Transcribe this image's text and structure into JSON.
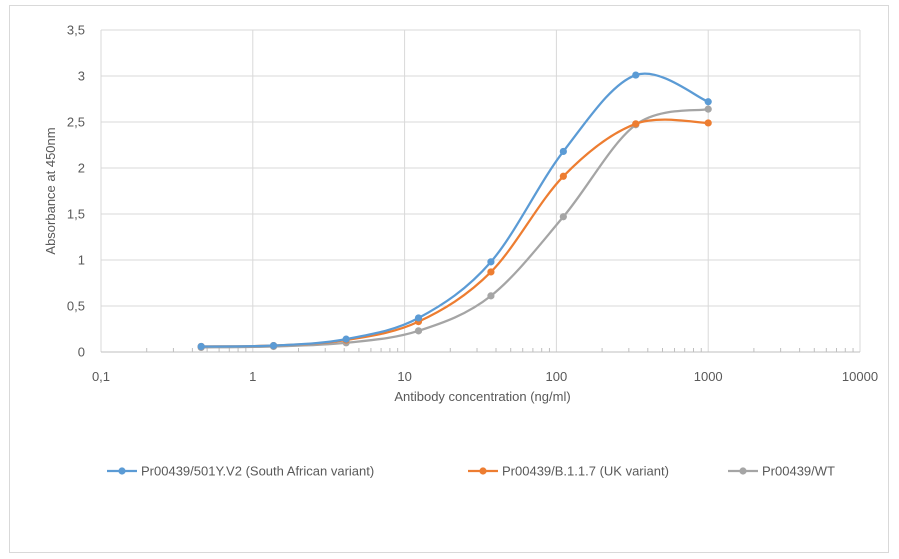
{
  "chart_data": {
    "type": "scatter",
    "title": "",
    "xlabel": "Antibody concentration (ng/ml)",
    "ylabel": "Absorbance at 450nm",
    "xscale": "log",
    "xlim": [
      0.1,
      10000
    ],
    "ylim": [
      0,
      3.5
    ],
    "x_ticks": [
      "0,1",
      "1",
      "10",
      "100",
      "1000",
      "10000"
    ],
    "y_ticks": [
      "0",
      "0,5",
      "1",
      "1,5",
      "2",
      "2,5",
      "3",
      "3,5"
    ],
    "grid": "horizontal and vertical major gridlines",
    "legend_position": "bottom",
    "x": [
      0.457,
      1.37,
      4.12,
      12.35,
      37.04,
      111.1,
      333.3,
      1000
    ],
    "series": [
      {
        "name": "Pr00439/501Y.V2 (South African variant)",
        "color": "#5b9bd5",
        "values": [
          0.06,
          0.07,
          0.14,
          0.37,
          0.98,
          2.18,
          3.01,
          2.72
        ]
      },
      {
        "name": "Pr00439/B.1.1.7 (UK variant)",
        "color": "#ed7d31",
        "values": [
          0.06,
          0.07,
          0.13,
          0.33,
          0.87,
          1.91,
          2.48,
          2.49
        ]
      },
      {
        "name": "Pr00439/WT",
        "color": "#a5a5a5",
        "values": [
          0.05,
          0.06,
          0.1,
          0.23,
          0.61,
          1.47,
          2.47,
          2.64
        ]
      }
    ]
  }
}
